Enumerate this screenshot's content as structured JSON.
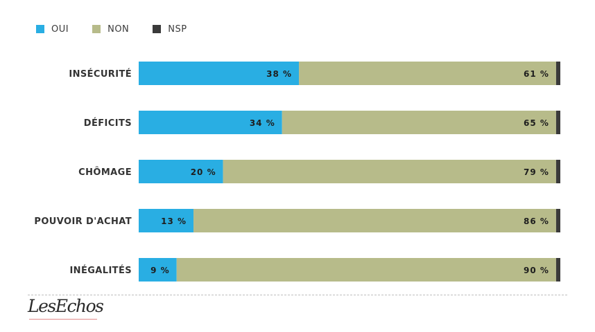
{
  "legend": [
    {
      "label": "OUI",
      "color": "#29aee3"
    },
    {
      "label": "NON",
      "color": "#b7bb8a"
    },
    {
      "label": "NSP",
      "color": "#3a3a3a"
    }
  ],
  "chart_data": {
    "type": "bar",
    "orientation": "horizontal",
    "stacked": true,
    "xlim": [
      0,
      100
    ],
    "grid": false,
    "legend_position": "top-left",
    "categories": [
      "INSÉCURITÉ",
      "DÉFICITS",
      "CHÔMAGE",
      "POUVOIR D'ACHAT",
      "INÉGALITÉS"
    ],
    "series": [
      {
        "name": "OUI",
        "color": "#29aee3",
        "values": [
          38,
          34,
          20,
          13,
          9
        ],
        "labels": [
          "38 %",
          "34 %",
          "20 %",
          "13 %",
          "9 %"
        ]
      },
      {
        "name": "NON",
        "color": "#b7bb8a",
        "values": [
          61,
          65,
          79,
          86,
          90
        ],
        "labels": [
          "61 %",
          "65 %",
          "79 %",
          "86 %",
          "90 %"
        ]
      },
      {
        "name": "NSP",
        "color": "#3a3a3a",
        "values": [
          1,
          1,
          1,
          1,
          1
        ]
      }
    ]
  },
  "footer": {
    "logo": "LesEchos"
  }
}
